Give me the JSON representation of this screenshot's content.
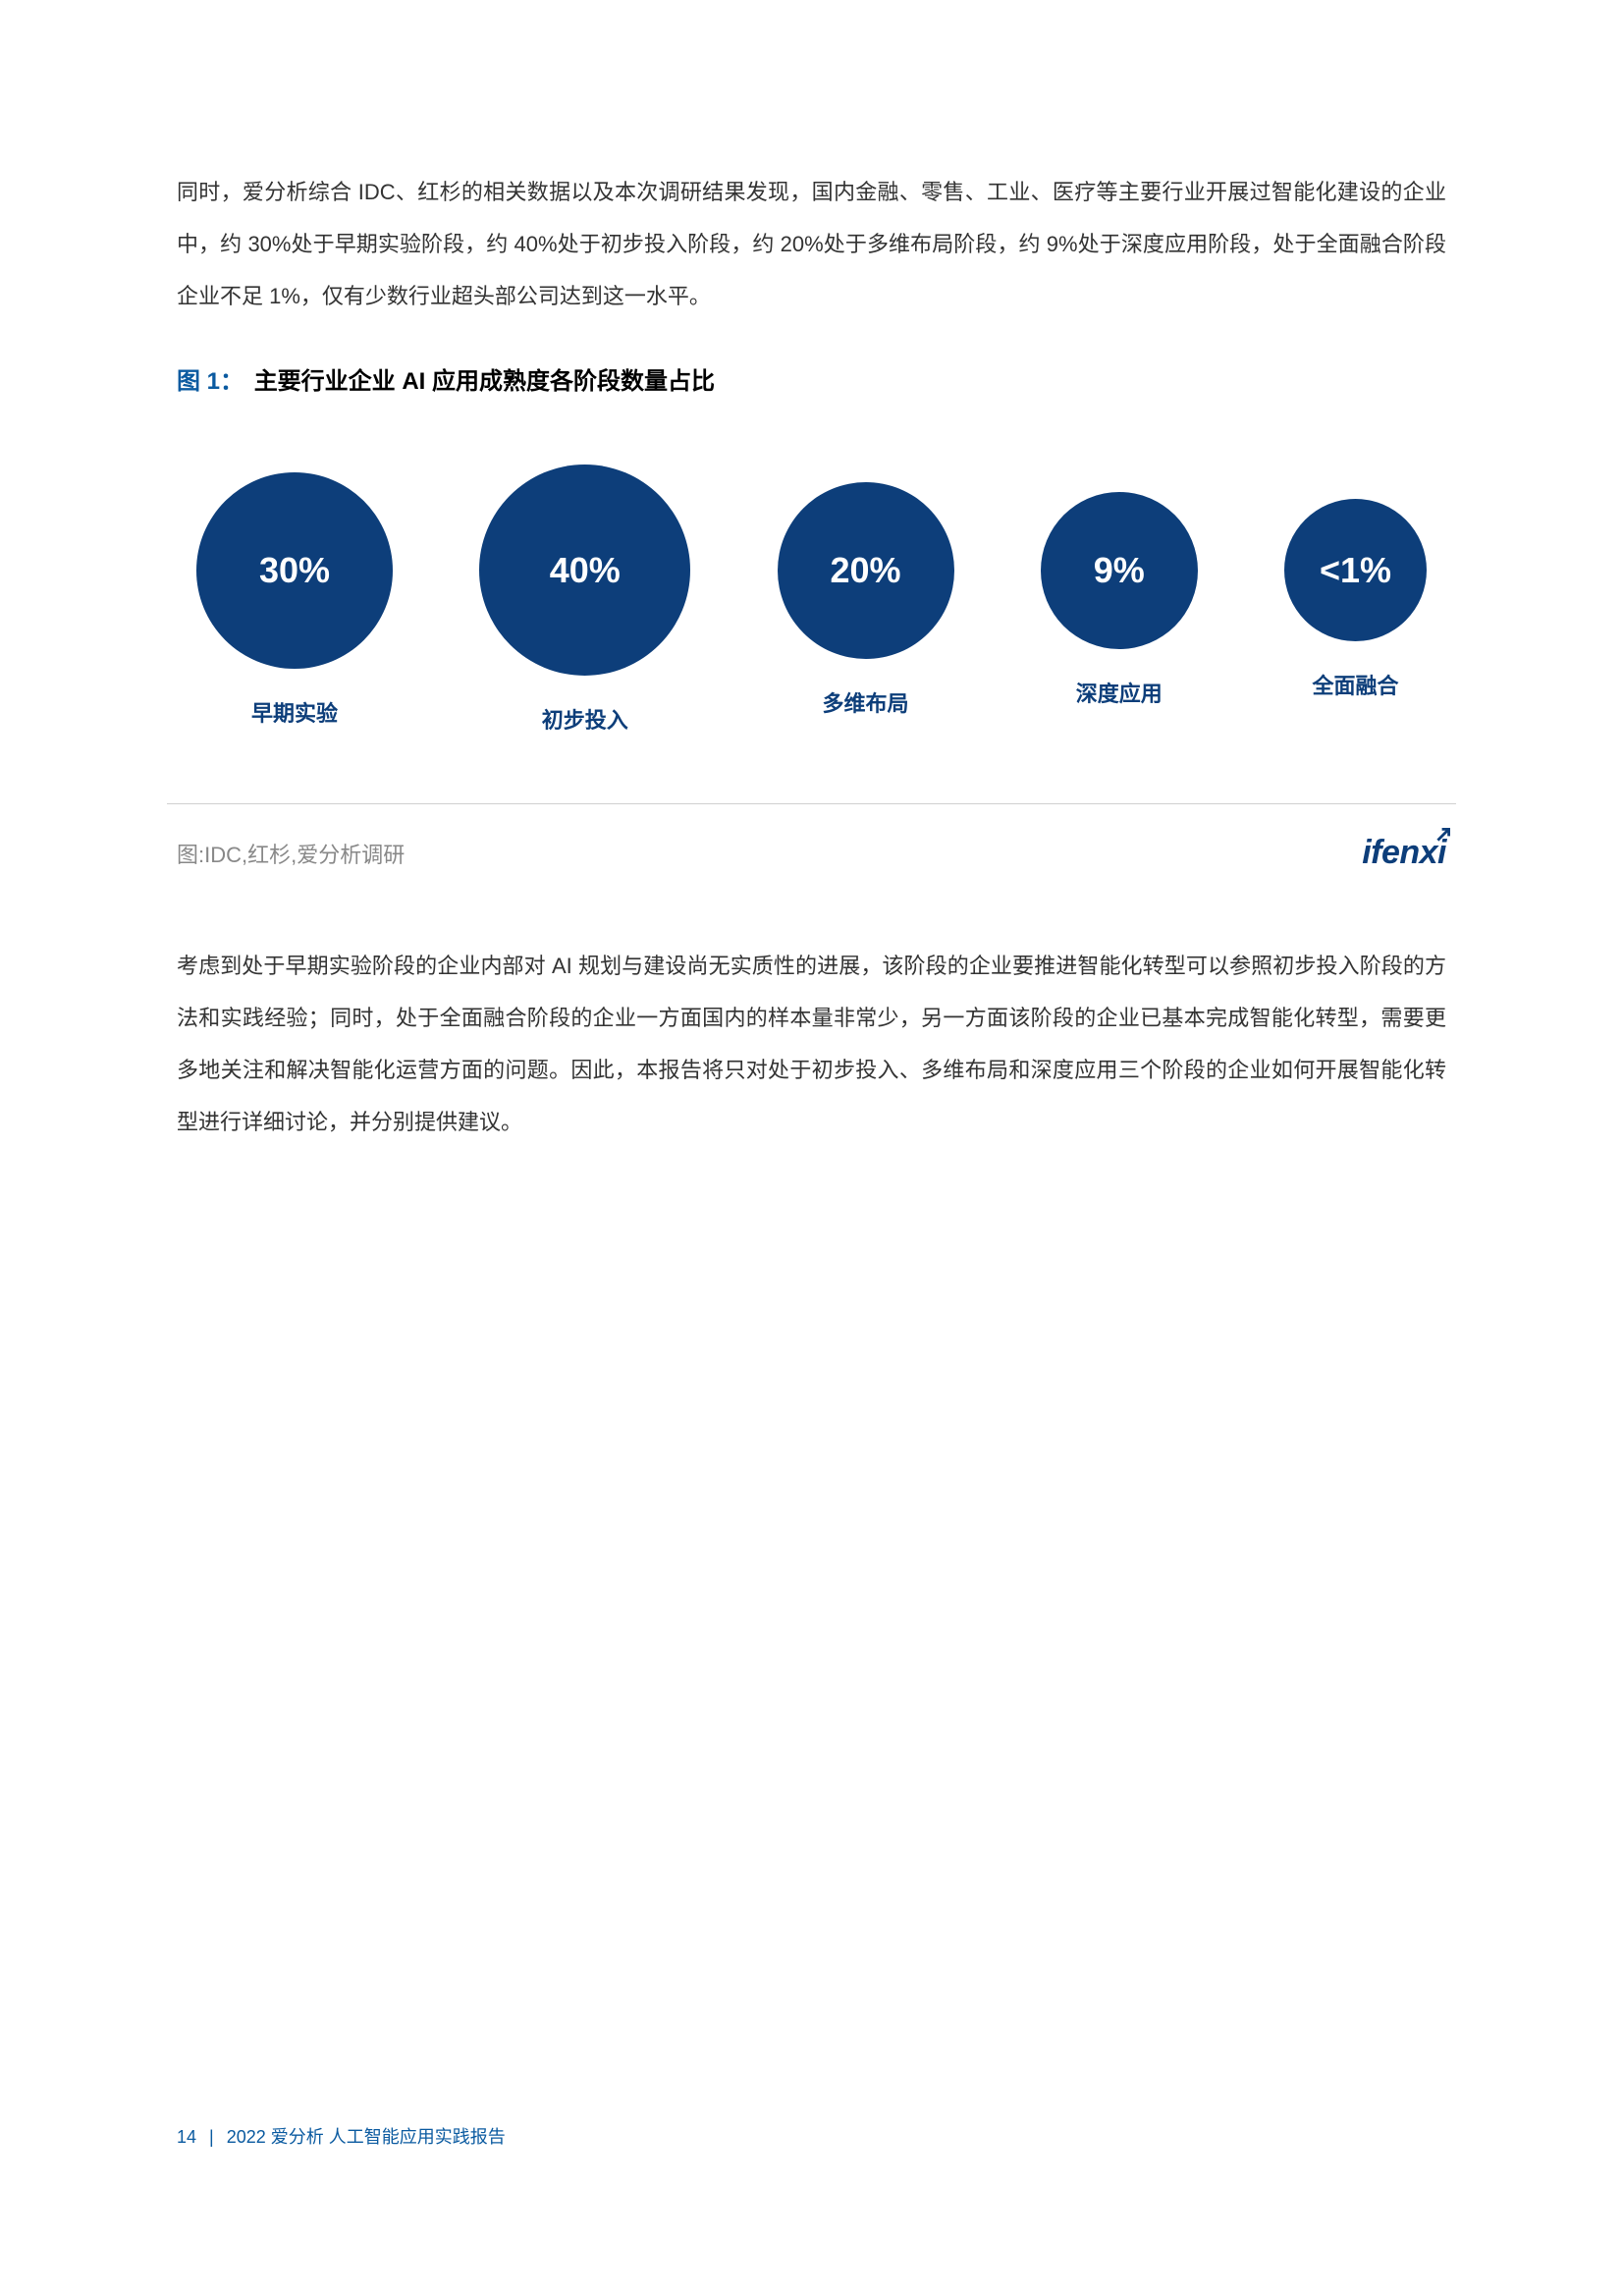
{
  "paragraph1": "同时，爱分析综合 IDC、红杉的相关数据以及本次调研结果发现，国内金融、零售、工业、医疗等主要行业开展过智能化建设的企业中，约 30%处于早期实验阶段，约 40%处于初步投入阶段，约 20%处于多维布局阶段，约 9%处于深度应用阶段，处于全面融合阶段企业不足 1%，仅有少数行业超头部公司达到这一水平。",
  "figure": {
    "label": "图 1：",
    "title": "主要行业企业 AI 应用成熟度各阶段数量占比"
  },
  "chart": {
    "type": "bubble-row",
    "background_color": "#ffffff",
    "circle_color": "#0d3e7a",
    "text_color": "#ffffff",
    "label_color": "#0d3e7a",
    "value_fontsize": 36,
    "label_fontsize": 22,
    "items": [
      {
        "value": "30%",
        "label": "早期实验",
        "diameter": 200
      },
      {
        "value": "40%",
        "label": "初步投入",
        "diameter": 215
      },
      {
        "value": "20%",
        "label": "多维布局",
        "diameter": 180
      },
      {
        "value": "9%",
        "label": "深度应用",
        "diameter": 160
      },
      {
        "value": "<1%",
        "label": "全面融合",
        "diameter": 145
      }
    ]
  },
  "source": "图:IDC,红杉,爱分析调研",
  "brand": "ifenxi",
  "paragraph2": "考虑到处于早期实验阶段的企业内部对 AI 规划与建设尚无实质性的进展，该阶段的企业要推进智能化转型可以参照初步投入阶段的方法和实践经验；同时，处于全面融合阶段的企业一方面国内的样本量非常少，另一方面该阶段的企业已基本完成智能化转型，需要更多地关注和解决智能化运营方面的问题。因此，本报告将只对处于初步投入、多维布局和深度应用三个阶段的企业如何开展智能化转型进行详细讨论，并分别提供建议。",
  "footer": {
    "page_number": "14",
    "report_title": "2022 爱分析  人工智能应用实践报告"
  }
}
